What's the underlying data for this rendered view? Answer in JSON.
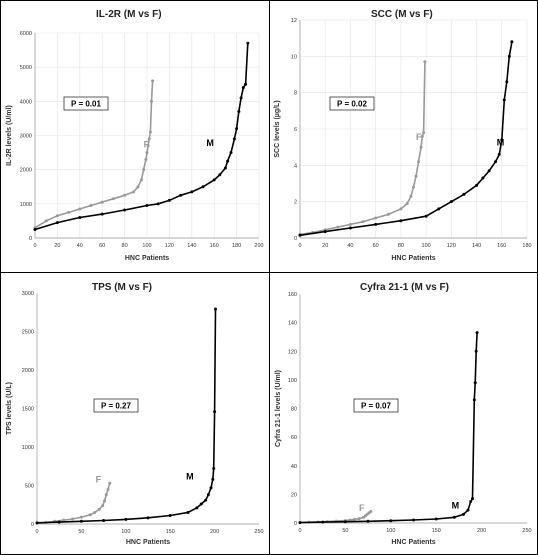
{
  "chart_data": [
    {
      "type": "line",
      "title": "IL-2R (M vs F)",
      "xlabel": "HNC Patients",
      "ylabel": "IL-2R levels (U/ml)",
      "xlim": [
        0,
        200
      ],
      "ylim": [
        0,
        6000
      ],
      "xticks": [
        "0",
        "20",
        "40",
        "60",
        "80",
        "100",
        "120",
        "140",
        "160",
        "180",
        "200"
      ],
      "yticks": [
        "0",
        "1000",
        "2000",
        "3000",
        "4000",
        "5000",
        "6000"
      ],
      "annotation": "P = 0.01",
      "series": [
        {
          "name": "F",
          "color": "#999999",
          "x": [
            0,
            10,
            20,
            30,
            40,
            50,
            60,
            70,
            80,
            88,
            92,
            95,
            97,
            99,
            100,
            101,
            102,
            103,
            104,
            105
          ],
          "y": [
            300,
            500,
            650,
            750,
            850,
            950,
            1050,
            1150,
            1250,
            1350,
            1500,
            1700,
            2000,
            2300,
            2500,
            2700,
            2900,
            3100,
            4000,
            4600
          ]
        },
        {
          "name": "M",
          "color": "#000000",
          "x": [
            0,
            20,
            40,
            60,
            80,
            100,
            110,
            120,
            130,
            140,
            150,
            160,
            165,
            170,
            172,
            175,
            178,
            180,
            182,
            184,
            186,
            188,
            190
          ],
          "y": [
            250,
            450,
            600,
            700,
            820,
            950,
            1000,
            1100,
            1250,
            1350,
            1500,
            1700,
            1850,
            2050,
            2250,
            2500,
            2900,
            3200,
            3700,
            4100,
            4400,
            4500,
            5700
          ]
        }
      ],
      "series_labels": [
        {
          "text": "F",
          "x": 97,
          "y": 2650
        },
        {
          "text": "M",
          "x": 153,
          "y": 2700
        }
      ],
      "grid": true
    },
    {
      "type": "line",
      "title": "SCC (M vs F)",
      "xlabel": "HNC Patients",
      "ylabel": "SCC levels (µg/L)",
      "xlim": [
        0,
        180
      ],
      "ylim": [
        0,
        12
      ],
      "xticks": [
        "0",
        "20",
        "40",
        "60",
        "80",
        "100",
        "120",
        "140",
        "160",
        "180"
      ],
      "yticks": [
        "0",
        "2",
        "4",
        "6",
        "8",
        "10",
        "12"
      ],
      "annotation": "P = 0.02",
      "series": [
        {
          "name": "F",
          "color": "#999999",
          "x": [
            0,
            10,
            20,
            30,
            40,
            50,
            60,
            70,
            80,
            85,
            88,
            90,
            92,
            94,
            96,
            97,
            98,
            99
          ],
          "y": [
            0.2,
            0.3,
            0.45,
            0.6,
            0.75,
            0.9,
            1.1,
            1.3,
            1.6,
            1.9,
            2.3,
            2.8,
            3.4,
            4.2,
            5.0,
            5.6,
            5.8,
            9.7
          ]
        },
        {
          "name": "M",
          "color": "#000000",
          "x": [
            0,
            20,
            40,
            60,
            80,
            100,
            110,
            120,
            130,
            140,
            145,
            150,
            155,
            158,
            160,
            162,
            164,
            166,
            168
          ],
          "y": [
            0.15,
            0.35,
            0.55,
            0.75,
            0.95,
            1.2,
            1.6,
            2.0,
            2.4,
            2.9,
            3.3,
            3.7,
            4.2,
            4.6,
            5.4,
            7.6,
            8.6,
            10.0,
            10.8
          ]
        }
      ],
      "series_labels": [
        {
          "text": "F",
          "x": 92,
          "y": 5.4
        },
        {
          "text": "M",
          "x": 156,
          "y": 5.1
        }
      ],
      "grid": true
    },
    {
      "type": "line",
      "title": "TPS (M vs F)",
      "xlabel": "HNC Patients",
      "ylabel": "TPS levels (U/L)",
      "xlim": [
        0,
        250
      ],
      "ylim": [
        0,
        3000
      ],
      "xticks": [
        "0",
        "50",
        "100",
        "150",
        "200",
        "250"
      ],
      "yticks": [
        "0",
        "500",
        "1000",
        "1500",
        "2000",
        "2500",
        "3000"
      ],
      "annotation": "P = 0.27",
      "series": [
        {
          "name": "F",
          "color": "#999999",
          "x": [
            0,
            10,
            20,
            30,
            40,
            50,
            60,
            65,
            70,
            74,
            76,
            78,
            80,
            82
          ],
          "y": [
            10,
            20,
            35,
            50,
            65,
            90,
            120,
            150,
            190,
            240,
            300,
            380,
            450,
            530
          ]
        },
        {
          "name": "M",
          "color": "#000000",
          "x": [
            0,
            25,
            50,
            75,
            100,
            125,
            150,
            170,
            180,
            185,
            190,
            193,
            196,
            198,
            199,
            200,
            201
          ],
          "y": [
            15,
            25,
            35,
            45,
            60,
            80,
            110,
            150,
            210,
            260,
            310,
            380,
            470,
            580,
            720,
            1460,
            2790
          ]
        }
      ],
      "series_labels": [
        {
          "text": "F",
          "x": 66,
          "y": 540
        },
        {
          "text": "M",
          "x": 168,
          "y": 580
        }
      ],
      "grid": false
    },
    {
      "type": "line",
      "title": "Cyfra 21-1 (M vs F)",
      "xlabel": "HNC Patients",
      "ylabel": "Cyfra 21-1 levels (U/ml)",
      "xlim": [
        0,
        250
      ],
      "ylim": [
        0,
        160
      ],
      "xticks": [
        "0",
        "50",
        "100",
        "150",
        "200",
        "250"
      ],
      "yticks": [
        "0",
        "20",
        "40",
        "60",
        "80",
        "100",
        "120",
        "140",
        "160"
      ],
      "annotation": "P = 0.07",
      "series": [
        {
          "name": "F",
          "color": "#999999",
          "x": [
            0,
            10,
            20,
            30,
            40,
            50,
            55,
            60,
            65,
            70,
            72,
            74,
            76,
            78
          ],
          "y": [
            0.3,
            0.5,
            0.7,
            1,
            1.3,
            1.7,
            2,
            2.5,
            3,
            4,
            5,
            6,
            7,
            8
          ]
        },
        {
          "name": "M",
          "color": "#000000",
          "x": [
            0,
            25,
            50,
            75,
            100,
            125,
            150,
            170,
            180,
            185,
            188,
            190,
            192,
            193,
            194,
            195
          ],
          "y": [
            0.3,
            0.6,
            0.9,
            1.2,
            1.6,
            2.1,
            2.8,
            4,
            6,
            9,
            15,
            17,
            86,
            98,
            120,
            133
          ]
        }
      ],
      "series_labels": [
        {
          "text": "F",
          "x": 65,
          "y": 8.5
        },
        {
          "text": "M",
          "x": 167,
          "y": 10
        }
      ],
      "grid": false
    }
  ]
}
